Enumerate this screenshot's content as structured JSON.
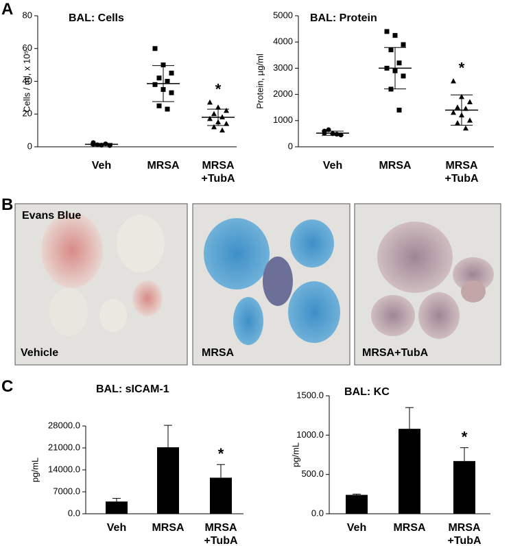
{
  "panels": [
    "A",
    "B",
    "C"
  ],
  "chart_data": [
    {
      "type": "dotplot",
      "title": "BAL: Cells",
      "ylabel": "Cells / ml, x 10⁵",
      "categories": [
        "Veh",
        "MRSA",
        "MRSA\n+TubA"
      ],
      "markers": [
        "circle",
        "square",
        "triangle"
      ],
      "color": "#000000",
      "points": [
        [
          1.5,
          1,
          0.8,
          1.2,
          1.8,
          2.5
        ],
        [
          60,
          50,
          45,
          42,
          40,
          38,
          35,
          33,
          25,
          23
        ],
        [
          27,
          24,
          22,
          20,
          18,
          17,
          15,
          14,
          12,
          10
        ]
      ],
      "means": [
        1.5,
        38.6,
        18
      ],
      "sd": [
        0.6,
        11,
        5
      ],
      "annotation": "*",
      "ylim": [
        0,
        80
      ],
      "yticks": [
        0,
        20,
        40,
        60,
        80
      ]
    },
    {
      "type": "dotplot",
      "title": "BAL: Protein",
      "ylabel": "Protein, µg/ml",
      "categories": [
        "Veh",
        "MRSA",
        "MRSA\n+TubA"
      ],
      "markers": [
        "circle",
        "square",
        "triangle"
      ],
      "color": "#000000",
      "points": [
        [
          600,
          500,
          450,
          650,
          480,
          520
        ],
        [
          4400,
          4250,
          3900,
          3700,
          3200,
          3000,
          2900,
          2700,
          2200,
          1400
        ],
        [
          2500,
          1900,
          1700,
          1500,
          1450,
          1300,
          1200,
          1000,
          900,
          700
        ]
      ],
      "means": [
        520,
        3000,
        1400
      ],
      "sd": [
        80,
        790,
        580
      ],
      "annotation": "*",
      "ylim": [
        0,
        5000
      ],
      "yticks": [
        0,
        1000,
        2000,
        3000,
        4000,
        5000
      ]
    },
    {
      "type": "bar",
      "title": "BAL: sICAM-1",
      "ylabel": "pg/mL",
      "categories": [
        "Veh",
        "MRSA",
        "MRSA\n+TubA"
      ],
      "color": "#000000",
      "values": [
        3900,
        21200,
        11500
      ],
      "errors": [
        1000,
        7000,
        4200
      ],
      "annotation": "*",
      "ylim": [
        0,
        28000
      ],
      "yticks": [
        {
          "value": 0,
          "label": "0.0"
        },
        {
          "value": 7000,
          "label": "7000.0"
        },
        {
          "value": 14000,
          "label": "14000.0"
        },
        {
          "value": 21000,
          "label": "21000.0"
        },
        {
          "value": 28000,
          "label": "28000.0"
        }
      ]
    },
    {
      "type": "bar",
      "title": "BAL: KC",
      "ylabel": "pg/mL",
      "categories": [
        "Veh",
        "MRSA",
        "MRSA\n+TubA"
      ],
      "color": "#000000",
      "values": [
        240,
        1080,
        670
      ],
      "errors": [
        10,
        270,
        170
      ],
      "annotation": "*",
      "ylim": [
        0,
        1500
      ],
      "yticks": [
        {
          "value": 0,
          "label": "0.0"
        },
        {
          "value": 500,
          "label": "500.0"
        },
        {
          "value": 1000,
          "label": "1000.0"
        },
        {
          "value": 1500,
          "label": "1500.0"
        }
      ]
    }
  ],
  "panel_b": {
    "title": "Evans Blue",
    "images": [
      "Vehicle",
      "MRSA",
      "MRSA+TubA"
    ]
  }
}
